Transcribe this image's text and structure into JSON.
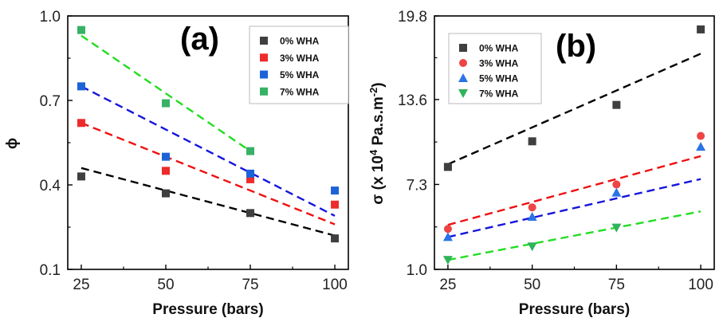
{
  "chart_data": [
    {
      "type": "scatter",
      "panel_label": "(a)",
      "xlabel": "Pressure (bars)",
      "ylabel": "ϕ",
      "xlim": [
        21,
        104
      ],
      "ylim": [
        0.1,
        1.0
      ],
      "xticks": [
        25,
        50,
        75,
        100
      ],
      "xtick_labels": [
        "25",
        "50",
        "75",
        "100"
      ],
      "yticks": [
        0.1,
        0.4,
        0.7,
        1.0
      ],
      "ytick_labels": [
        "0.1",
        "0.4",
        "0.7",
        "1.0"
      ],
      "legend_position": "top-right",
      "grid": false,
      "series": [
        {
          "name": "0% WHA",
          "color": "#3f3f3f",
          "marker": "square",
          "x": [
            25,
            50,
            75,
            100
          ],
          "y": [
            0.43,
            0.37,
            0.3,
            0.21
          ],
          "fit": [
            [
              25,
              0.46
            ],
            [
              100,
              0.22
            ]
          ]
        },
        {
          "name": "3% WHA",
          "color": "#ee2b2b",
          "marker": "square",
          "x": [
            25,
            50,
            75,
            100
          ],
          "y": [
            0.62,
            0.45,
            0.42,
            0.33
          ],
          "fit": [
            [
              25,
              0.62
            ],
            [
              100,
              0.26
            ]
          ]
        },
        {
          "name": "5% WHA",
          "color": "#1c63d8",
          "marker": "square",
          "x": [
            25,
            50,
            75,
            100
          ],
          "y": [
            0.75,
            0.5,
            0.44,
            0.38
          ],
          "fit": [
            [
              25,
              0.75
            ],
            [
              100,
              0.29
            ]
          ]
        },
        {
          "name": "7% WHA",
          "color": "#37b166",
          "marker": "square",
          "x": [
            25,
            50,
            75
          ],
          "y": [
            0.95,
            0.69,
            0.52
          ],
          "fit": [
            [
              25,
              0.93
            ],
            [
              75,
              0.52
            ]
          ]
        }
      ],
      "fit_colors": [
        "#000000",
        "#ee1111",
        "#1515dd",
        "#22dd22"
      ]
    },
    {
      "type": "scatter",
      "panel_label": "(b)",
      "xlabel": "Pressure (bars)",
      "ylabel": "σ (x 10⁴ Pa.s.m⁻²)",
      "ylabel_parts": [
        "σ (x 10",
        "4",
        " Pa.s.m",
        "-2",
        ")"
      ],
      "xlim": [
        21,
        104
      ],
      "ylim": [
        1.0,
        19.8
      ],
      "xticks": [
        25,
        50,
        75,
        100
      ],
      "xtick_labels": [
        "25",
        "50",
        "75",
        "100"
      ],
      "yticks": [
        1.0,
        7.3,
        13.6,
        19.8
      ],
      "ytick_labels": [
        "1.0",
        "7.3",
        "13.6",
        "19.8"
      ],
      "legend_position": "top-left",
      "grid": false,
      "series": [
        {
          "name": "0% WHA",
          "color": "#3f3f3f",
          "marker": "square",
          "x": [
            25,
            50,
            75,
            100
          ],
          "y": [
            8.6,
            10.5,
            13.2,
            18.8
          ],
          "fit": [
            [
              25,
              8.8
            ],
            [
              100,
              17.0
            ]
          ]
        },
        {
          "name": "3% WHA",
          "color": "#ee4444",
          "marker": "circle",
          "x": [
            25,
            50,
            75,
            100
          ],
          "y": [
            4.0,
            5.6,
            7.3,
            10.9
          ],
          "fit": [
            [
              25,
              4.3
            ],
            [
              100,
              9.4
            ]
          ]
        },
        {
          "name": "5% WHA",
          "color": "#2a74e6",
          "marker": "triangle-up",
          "x": [
            25,
            50,
            75,
            100
          ],
          "y": [
            3.4,
            4.9,
            6.7,
            10.1
          ],
          "fit": [
            [
              25,
              3.4
            ],
            [
              100,
              7.7
            ]
          ]
        },
        {
          "name": "7% WHA",
          "color": "#2fb45a",
          "marker": "triangle-down",
          "x": [
            25,
            50,
            75,
            100
          ],
          "y": [
            1.7,
            2.7,
            4.1,
            null
          ],
          "fit": [
            [
              25,
              1.7
            ],
            [
              100,
              5.3
            ]
          ]
        }
      ],
      "fit_colors": [
        "#000000",
        "#ee1111",
        "#1515dd",
        "#22dd22"
      ]
    }
  ]
}
